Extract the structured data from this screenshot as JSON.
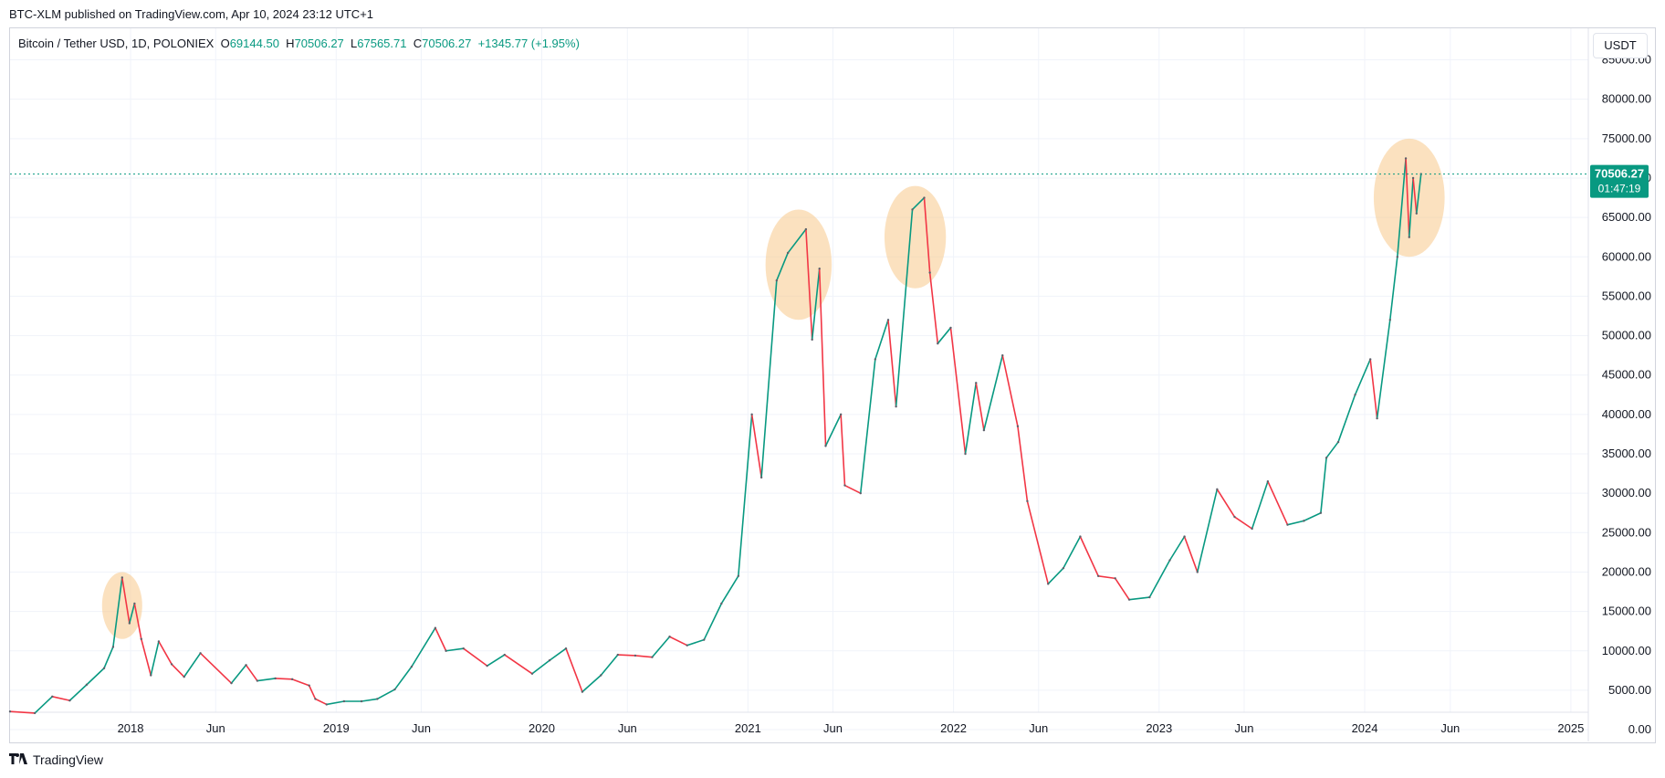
{
  "header": {
    "published": "BTC-XLM published on TradingView.com, Apr 10, 2024 23:12 UTC+1"
  },
  "legend": {
    "symbol": "Bitcoin / Tether USD, 1D, POLONIEX",
    "o_label": "O",
    "o_value": "69144.50",
    "h_label": "H",
    "h_value": "70506.27",
    "l_label": "L",
    "l_value": "67565.71",
    "c_label": "C",
    "c_value": "70506.27",
    "change": "+1345.77 (+1.95%)"
  },
  "currency_button": "USDT",
  "price_badge": {
    "price": "70506.27",
    "countdown": "01:47:19"
  },
  "footer": {
    "brand": "TradingView"
  },
  "colors": {
    "up": "#089981",
    "down": "#f23645",
    "highlight": "#f7c98b",
    "badge": "#089981"
  },
  "chart_data": {
    "type": "line",
    "title": "Bitcoin / Tether USD, 1D, POLONIEX",
    "x_ticks": [
      "2018",
      "Jun",
      "2019",
      "Jun",
      "2020",
      "Jun",
      "2021",
      "Jun",
      "2022",
      "Jun",
      "2023",
      "Jun",
      "2024",
      "Jun",
      "2025"
    ],
    "y_ticks": [
      "0.00",
      "5000.00",
      "10000.00",
      "15000.00",
      "20000.00",
      "25000.00",
      "30000.00",
      "35000.00",
      "40000.00",
      "45000.00",
      "50000.00",
      "55000.00",
      "60000.00",
      "65000.00",
      "70000.00",
      "75000.00",
      "80000.00",
      "85000.00"
    ],
    "ylim": [
      -1500,
      89000
    ],
    "xlim": [
      "2017-06-01",
      "2025-02-01"
    ],
    "last_price": 70506.27,
    "grid": true,
    "series": [
      {
        "values": [
          {
            "x": "2017-06-01",
            "y": 2300
          },
          {
            "x": "2017-07-15",
            "y": 2100
          },
          {
            "x": "2017-08-15",
            "y": 4200
          },
          {
            "x": "2017-09-15",
            "y": 3700
          },
          {
            "x": "2017-10-15",
            "y": 5700
          },
          {
            "x": "2017-11-15",
            "y": 7800
          },
          {
            "x": "2017-12-01",
            "y": 10500
          },
          {
            "x": "2017-12-17",
            "y": 19300
          },
          {
            "x": "2017-12-30",
            "y": 13500
          },
          {
            "x": "2018-01-08",
            "y": 16000
          },
          {
            "x": "2018-01-20",
            "y": 11500
          },
          {
            "x": "2018-02-06",
            "y": 6900
          },
          {
            "x": "2018-02-20",
            "y": 11200
          },
          {
            "x": "2018-03-15",
            "y": 8300
          },
          {
            "x": "2018-04-06",
            "y": 6700
          },
          {
            "x": "2018-05-05",
            "y": 9700
          },
          {
            "x": "2018-06-29",
            "y": 5900
          },
          {
            "x": "2018-07-25",
            "y": 8200
          },
          {
            "x": "2018-08-14",
            "y": 6200
          },
          {
            "x": "2018-09-15",
            "y": 6500
          },
          {
            "x": "2018-10-15",
            "y": 6400
          },
          {
            "x": "2018-11-14",
            "y": 5600
          },
          {
            "x": "2018-11-25",
            "y": 3900
          },
          {
            "x": "2018-12-15",
            "y": 3200
          },
          {
            "x": "2019-01-15",
            "y": 3600
          },
          {
            "x": "2019-02-15",
            "y": 3600
          },
          {
            "x": "2019-03-15",
            "y": 3900
          },
          {
            "x": "2019-04-15",
            "y": 5100
          },
          {
            "x": "2019-05-15",
            "y": 8000
          },
          {
            "x": "2019-06-26",
            "y": 12900
          },
          {
            "x": "2019-07-15",
            "y": 10000
          },
          {
            "x": "2019-08-15",
            "y": 10300
          },
          {
            "x": "2019-09-26",
            "y": 8100
          },
          {
            "x": "2019-10-27",
            "y": 9500
          },
          {
            "x": "2019-12-15",
            "y": 7100
          },
          {
            "x": "2020-01-15",
            "y": 8800
          },
          {
            "x": "2020-02-13",
            "y": 10300
          },
          {
            "x": "2020-03-13",
            "y": 4800
          },
          {
            "x": "2020-04-15",
            "y": 6900
          },
          {
            "x": "2020-05-15",
            "y": 9500
          },
          {
            "x": "2020-06-15",
            "y": 9400
          },
          {
            "x": "2020-07-15",
            "y": 9200
          },
          {
            "x": "2020-08-15",
            "y": 11800
          },
          {
            "x": "2020-09-15",
            "y": 10700
          },
          {
            "x": "2020-10-15",
            "y": 11400
          },
          {
            "x": "2020-11-15",
            "y": 16000
          },
          {
            "x": "2020-12-15",
            "y": 19500
          },
          {
            "x": "2021-01-08",
            "y": 40000
          },
          {
            "x": "2021-01-25",
            "y": 32000
          },
          {
            "x": "2021-02-21",
            "y": 57000
          },
          {
            "x": "2021-03-13",
            "y": 60500
          },
          {
            "x": "2021-04-14",
            "y": 63500
          },
          {
            "x": "2021-04-25",
            "y": 49500
          },
          {
            "x": "2021-05-08",
            "y": 58500
          },
          {
            "x": "2021-05-19",
            "y": 36000
          },
          {
            "x": "2021-06-15",
            "y": 40000
          },
          {
            "x": "2021-06-22",
            "y": 31000
          },
          {
            "x": "2021-07-20",
            "y": 30000
          },
          {
            "x": "2021-08-15",
            "y": 47000
          },
          {
            "x": "2021-09-07",
            "y": 52000
          },
          {
            "x": "2021-09-21",
            "y": 41000
          },
          {
            "x": "2021-10-20",
            "y": 66000
          },
          {
            "x": "2021-11-10",
            "y": 67500
          },
          {
            "x": "2021-11-20",
            "y": 58000
          },
          {
            "x": "2021-12-04",
            "y": 49000
          },
          {
            "x": "2021-12-27",
            "y": 51000
          },
          {
            "x": "2022-01-22",
            "y": 35000
          },
          {
            "x": "2022-02-10",
            "y": 44000
          },
          {
            "x": "2022-02-24",
            "y": 38000
          },
          {
            "x": "2022-03-29",
            "y": 47500
          },
          {
            "x": "2022-04-25",
            "y": 38500
          },
          {
            "x": "2022-05-12",
            "y": 29000
          },
          {
            "x": "2022-06-18",
            "y": 18500
          },
          {
            "x": "2022-07-15",
            "y": 20500
          },
          {
            "x": "2022-08-14",
            "y": 24500
          },
          {
            "x": "2022-09-15",
            "y": 19500
          },
          {
            "x": "2022-10-15",
            "y": 19200
          },
          {
            "x": "2022-11-09",
            "y": 16500
          },
          {
            "x": "2022-12-15",
            "y": 16800
          },
          {
            "x": "2023-01-20",
            "y": 21500
          },
          {
            "x": "2023-02-15",
            "y": 24500
          },
          {
            "x": "2023-03-10",
            "y": 20000
          },
          {
            "x": "2023-04-14",
            "y": 30500
          },
          {
            "x": "2023-05-15",
            "y": 27000
          },
          {
            "x": "2023-06-15",
            "y": 25500
          },
          {
            "x": "2023-07-13",
            "y": 31500
          },
          {
            "x": "2023-08-17",
            "y": 26000
          },
          {
            "x": "2023-09-15",
            "y": 26500
          },
          {
            "x": "2023-10-15",
            "y": 27500
          },
          {
            "x": "2023-10-25",
            "y": 34500
          },
          {
            "x": "2023-11-15",
            "y": 36500
          },
          {
            "x": "2023-12-15",
            "y": 42500
          },
          {
            "x": "2024-01-11",
            "y": 47000
          },
          {
            "x": "2024-01-23",
            "y": 39500
          },
          {
            "x": "2024-02-15",
            "y": 52000
          },
          {
            "x": "2024-02-28",
            "y": 60000
          },
          {
            "x": "2024-03-14",
            "y": 72500
          },
          {
            "x": "2024-03-20",
            "y": 62500
          },
          {
            "x": "2024-03-27",
            "y": 70000
          },
          {
            "x": "2024-04-02",
            "y": 65500
          },
          {
            "x": "2024-04-10",
            "y": 70506.27
          }
        ]
      }
    ],
    "annotations": [
      {
        "type": "ellipse",
        "center_date": "2017-12-17",
        "y_low": 11500,
        "y_high": 20000
      },
      {
        "type": "ellipse",
        "center_date": "2021-04-01",
        "y_low": 52000,
        "y_high": 66000
      },
      {
        "type": "ellipse",
        "center_date": "2021-10-25",
        "y_low": 56000,
        "y_high": 69000
      },
      {
        "type": "ellipse",
        "center_date": "2024-03-20",
        "y_low": 60000,
        "y_high": 75000
      }
    ]
  }
}
